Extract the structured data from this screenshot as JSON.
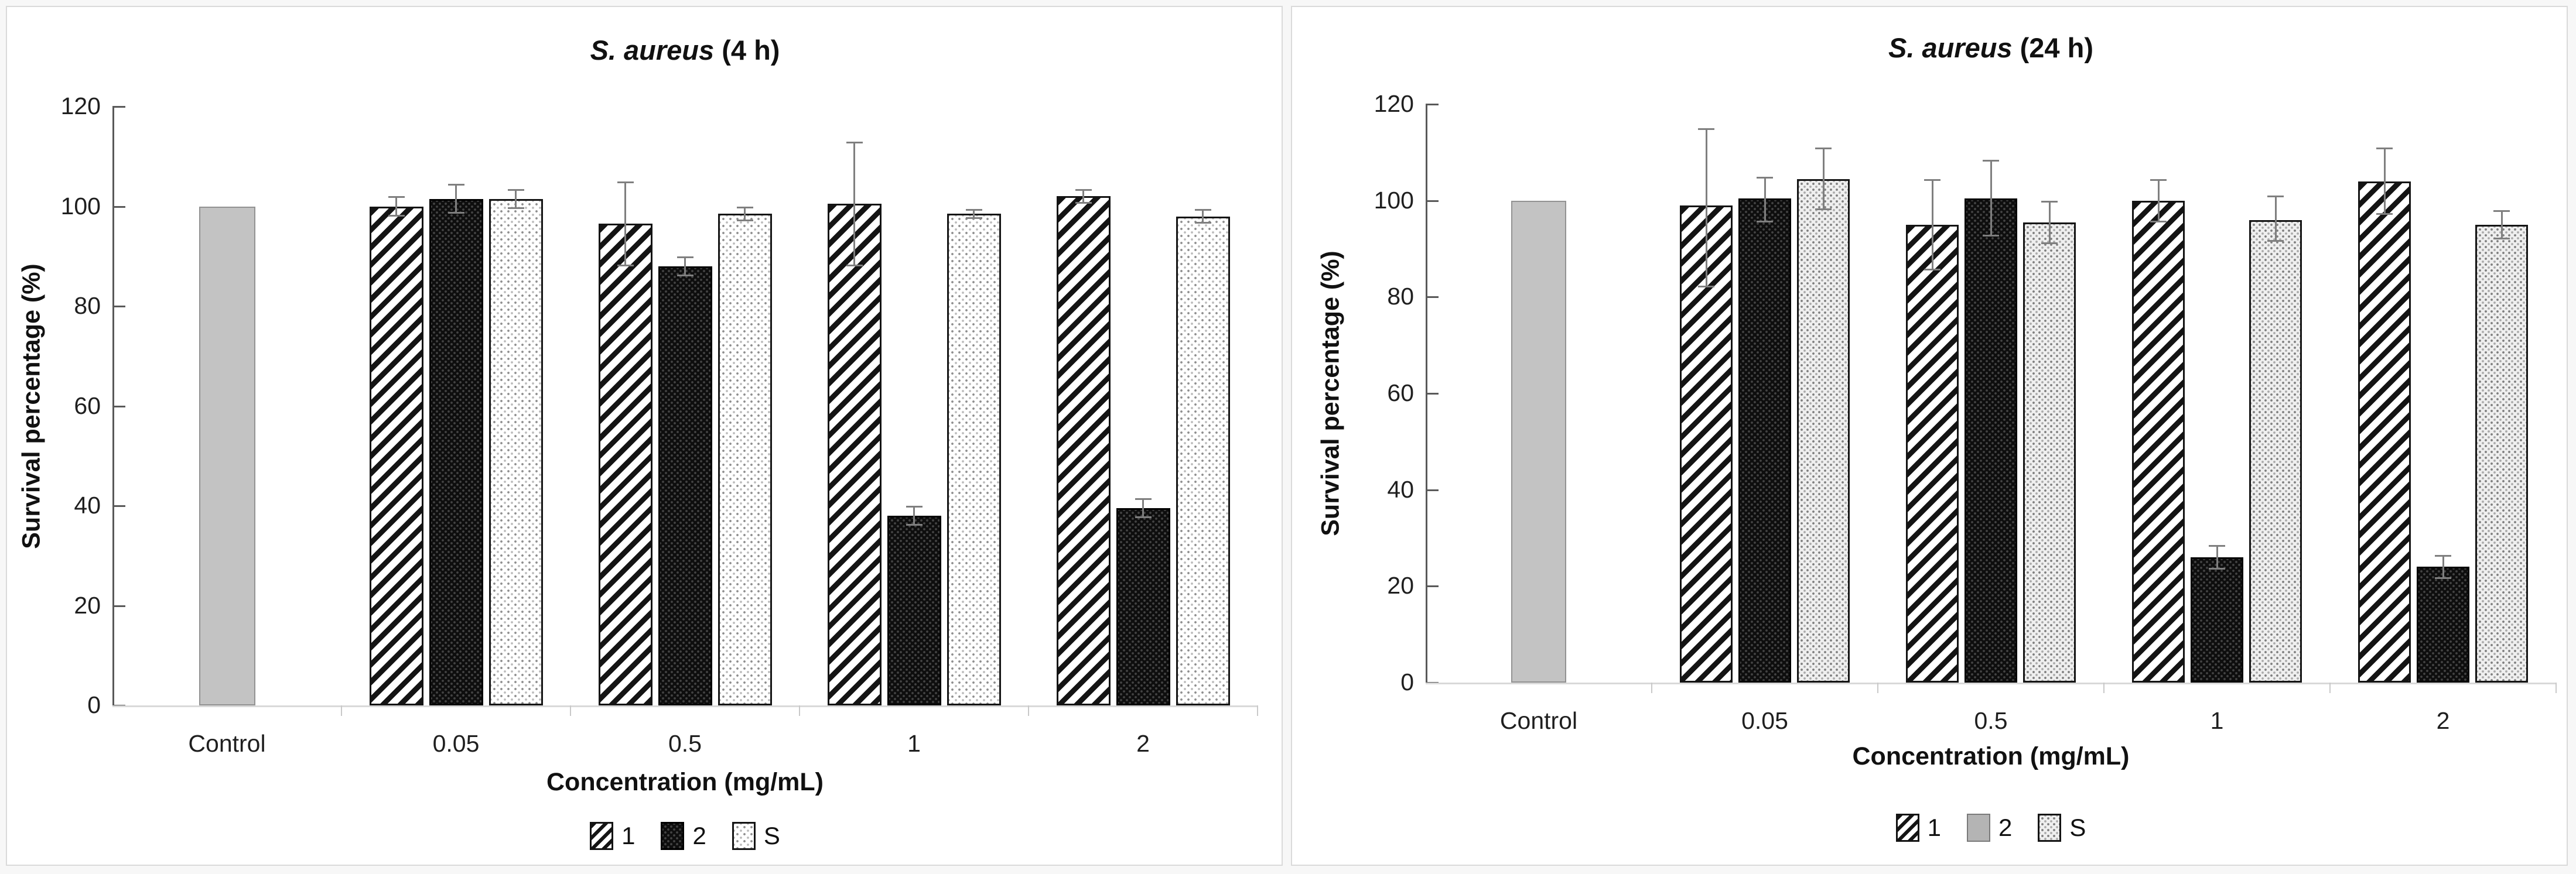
{
  "ui": {
    "page_background": "#f7f7f7",
    "panel_background": "#ffffff",
    "panel_border_color": "#dadada",
    "axis_color": "#595959",
    "baseline_color": "#d9d9d9",
    "error_bar_color": "#7f7f7f",
    "control_fill": "#c3c3c3",
    "text_color": "#1f1f1f"
  },
  "chart_data": [
    {
      "type": "bar",
      "title": "S. aureus (4 h)",
      "title_italic": "S. aureus",
      "title_rest": " (4 h)",
      "xlabel": "Concentration (mg/mL)",
      "ylabel": "Survival percentage (%)",
      "ylim": [
        0,
        120
      ],
      "yticks": [
        0,
        20,
        40,
        60,
        80,
        100,
        120
      ],
      "grid": false,
      "legend_position": "bottom",
      "categories": [
        "Control",
        "0.05",
        "0.5",
        "1",
        "2"
      ],
      "series": [
        {
          "name": "Control",
          "pattern": "control",
          "values": [
            100,
            null,
            null,
            null,
            null
          ],
          "err_up": [
            0,
            null,
            null,
            null,
            null
          ],
          "err_down": [
            0,
            null,
            null,
            null,
            null
          ]
        },
        {
          "name": "1",
          "pattern": "hatch",
          "values": [
            null,
            100,
            96.5,
            100.5,
            102
          ],
          "err_up": [
            null,
            2,
            8.5,
            12.5,
            1.5
          ],
          "err_down": [
            null,
            2,
            8.5,
            12.5,
            1.5
          ]
        },
        {
          "name": "2",
          "pattern": "dark-dot",
          "values": [
            null,
            101.5,
            88,
            38,
            39.5
          ],
          "err_up": [
            null,
            3,
            2,
            2,
            2
          ],
          "err_down": [
            null,
            3,
            2,
            2,
            2
          ]
        },
        {
          "name": "S",
          "pattern": "light-dot",
          "values": [
            null,
            101.5,
            98.5,
            98.5,
            98
          ],
          "err_up": [
            null,
            2,
            1.5,
            1,
            1.5
          ],
          "err_down": [
            null,
            2,
            1.5,
            1,
            1.5
          ]
        }
      ],
      "legend": [
        {
          "label": "1",
          "pattern": "hatch"
        },
        {
          "label": "2",
          "pattern": "dark-dot"
        },
        {
          "label": "S",
          "pattern": "light-dot"
        }
      ]
    },
    {
      "type": "bar",
      "title": "S. aureus (24 h)",
      "title_italic": "S. aureus",
      "title_rest": " (24 h)",
      "xlabel": "Concentration (mg/mL)",
      "ylabel": "Survival percentage (%)",
      "ylim": [
        0,
        120
      ],
      "yticks": [
        0,
        20,
        40,
        60,
        80,
        100,
        120
      ],
      "grid": false,
      "legend_position": "bottom",
      "categories": [
        "Control",
        "0.05",
        "0.5",
        "1",
        "2"
      ],
      "series": [
        {
          "name": "Control",
          "pattern": "control",
          "values": [
            100,
            null,
            null,
            null,
            null
          ],
          "err_up": [
            0,
            null,
            null,
            null,
            null
          ],
          "err_down": [
            0,
            null,
            null,
            null,
            null
          ]
        },
        {
          "name": "1",
          "pattern": "hatch",
          "values": [
            null,
            99,
            95,
            100,
            104
          ],
          "err_up": [
            null,
            16,
            9.5,
            4.5,
            7
          ],
          "err_down": [
            null,
            17,
            9.5,
            4.5,
            7
          ]
        },
        {
          "name": "2",
          "pattern": "dark-dot",
          "values": [
            null,
            100.5,
            100.5,
            26,
            24
          ],
          "err_up": [
            null,
            4.5,
            8,
            2.5,
            2.5
          ],
          "err_down": [
            null,
            5,
            8,
            2.5,
            2.5
          ]
        },
        {
          "name": "S",
          "pattern": "light-dot-gray",
          "values": [
            null,
            104.5,
            95.5,
            96,
            95
          ],
          "err_up": [
            null,
            6.5,
            4.5,
            5,
            3
          ],
          "err_down": [
            null,
            6.5,
            4.5,
            4.5,
            3
          ]
        }
      ],
      "legend": [
        {
          "label": "1",
          "pattern": "hatch"
        },
        {
          "label": "2",
          "pattern": "solid-gray"
        },
        {
          "label": "S",
          "pattern": "light-dot-gray"
        }
      ]
    }
  ]
}
